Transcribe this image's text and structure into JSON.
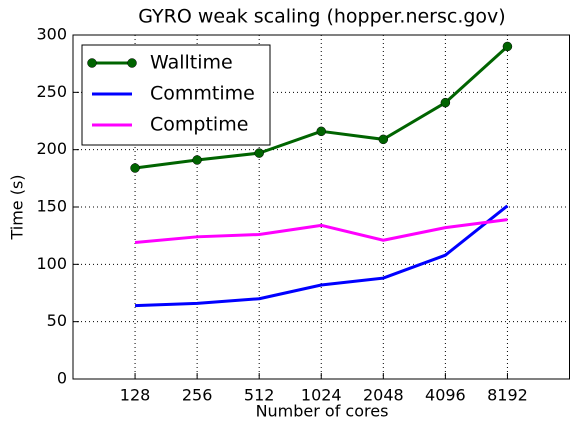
{
  "chart_data": {
    "type": "line",
    "title": "GYRO weak scaling (hopper.nersc.gov)",
    "x_label": "Number of cores",
    "y_label": "Time (s)",
    "categories": [
      "128",
      "256",
      "512",
      "1024",
      "2048",
      "4096",
      "8192"
    ],
    "series": [
      {
        "name": "Walltime",
        "color": "#006400",
        "marker": "o",
        "values": [
          184,
          191,
          197,
          216,
          209,
          241,
          290
        ]
      },
      {
        "name": "Commtime",
        "color": "#0000ff",
        "values": [
          64,
          66,
          70,
          82,
          88,
          108,
          151
        ]
      },
      {
        "name": "Comptime",
        "color": "#ff00ff",
        "values": [
          119,
          124,
          126,
          134,
          121,
          132,
          139
        ]
      }
    ],
    "ylim": [
      0,
      300
    ],
    "yticks": [
      0,
      50,
      100,
      150,
      200,
      250,
      300
    ],
    "grid": true,
    "legend": "upper left"
  }
}
